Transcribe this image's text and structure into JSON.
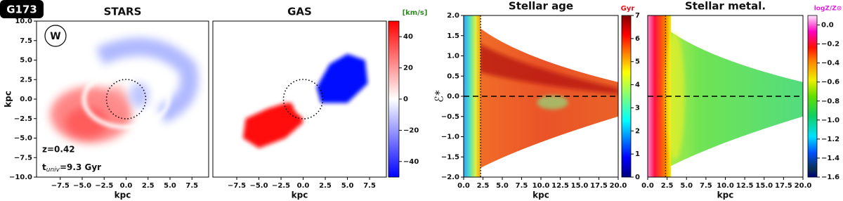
{
  "figure_label": "G173",
  "chart_data": [
    {
      "type": "velocity-map",
      "title": "STARS",
      "xlabel": "kpc",
      "ylabel": "kpc",
      "xlim": [
        -10.2,
        9.4
      ],
      "ylim": [
        -10,
        10
      ],
      "xticks": [
        {
          "value": -7.5,
          "label": "−7.5"
        },
        {
          "value": -5,
          "label": "−5.0"
        },
        {
          "value": -2.5,
          "label": "−2.5"
        },
        {
          "value": 0,
          "label": "0.0"
        },
        2.5,
        {
          "value": 5,
          "label": "5.0"
        },
        7.5
      ],
      "yticks": [
        {
          "value": 10,
          "label": "10.0"
        },
        7.5,
        {
          "value": 5,
          "label": "5.0"
        },
        2.5,
        {
          "value": 0,
          "label": "0.0"
        },
        {
          "value": -2.5,
          "label": "−2.5"
        },
        {
          "value": -5,
          "label": "−5.0"
        },
        {
          "value": -7.5,
          "label": "−7.5"
        },
        {
          "value": -10,
          "label": "−10.0"
        }
      ],
      "badge": "W",
      "redshift": "z=0.42",
      "age_parts": [
        "t",
        "univ",
        "=9.3 Gyr"
      ]
    },
    {
      "type": "velocity-map",
      "title": "GAS",
      "xlabel": "kpc",
      "xlim": [
        -10.2,
        9.4
      ],
      "ylim": [
        -10,
        10
      ],
      "xticks": [
        {
          "value": -7.5,
          "label": "−7.5"
        },
        {
          "value": -5,
          "label": "−5.0"
        },
        {
          "value": -2.5,
          "label": "−2.5"
        },
        {
          "value": 0,
          "label": "0.0"
        },
        2.5,
        {
          "value": 5,
          "label": "5.0"
        },
        7.5
      ],
      "colorbar": {
        "label": "[km/s]",
        "color": "#2e8b20",
        "lim": [
          -50,
          50
        ],
        "ticks": [
          40,
          20,
          0,
          {
            "value": -20,
            "label": "−20"
          },
          {
            "value": -40,
            "label": "−40"
          }
        ],
        "colormap": "bwr"
      }
    },
    {
      "type": "histogram2d",
      "title": "Stellar age",
      "xlabel": "kpc",
      "ylabel": "ℰ*",
      "xlim": [
        0,
        20
      ],
      "ylim": [
        -2,
        2
      ],
      "xticks": [
        {
          "value": 0,
          "label": "0.0"
        },
        2.5,
        {
          "value": 5,
          "label": "5.0"
        },
        7.5,
        {
          "value": 10,
          "label": "10.0"
        },
        12.5,
        {
          "value": 15,
          "label": "15.0"
        },
        17.5,
        {
          "value": 20,
          "label": "20.0"
        }
      ],
      "yticks": [
        {
          "value": 2,
          "label": "2.0"
        },
        1.5,
        {
          "value": 1,
          "label": "1.0"
        },
        0.5,
        {
          "value": 0,
          "label": "0.0"
        },
        {
          "value": -0.5,
          "label": "−0.5"
        },
        {
          "value": -1,
          "label": "−1.0"
        },
        {
          "value": -1.5,
          "label": "−1.5"
        },
        {
          "value": -2,
          "label": "−2.0"
        }
      ],
      "vline": 2.2,
      "hline": 0,
      "colorbar": {
        "label": "Gyr",
        "color": "#e8101a",
        "lim": [
          0,
          7
        ],
        "ticks": [
          0,
          1,
          2,
          3,
          4,
          5,
          6,
          7
        ],
        "colormap": "age"
      }
    },
    {
      "type": "histogram2d",
      "title": "Stellar metal.",
      "xlabel": "kpc",
      "xlim": [
        0,
        20
      ],
      "ylim": [
        -2,
        2
      ],
      "xticks": [
        {
          "value": 0,
          "label": "0.0"
        },
        2.5,
        {
          "value": 5,
          "label": "5.0"
        },
        7.5,
        {
          "value": 10,
          "label": "10.0"
        },
        12.5,
        {
          "value": 15,
          "label": "15.0"
        },
        17.5,
        {
          "value": 20,
          "label": "20.0"
        }
      ],
      "vline": 2.3,
      "hline": 0,
      "colorbar": {
        "label": "logZ/Z⊙",
        "color": "#e020e0",
        "lim": [
          -1.6,
          0.1
        ],
        "ticks": [
          {
            "value": 0,
            "label": "0.0"
          },
          {
            "value": -0.2,
            "label": "−0.2"
          },
          {
            "value": -0.4,
            "label": "−0.4"
          },
          {
            "value": -0.6,
            "label": "−0.6"
          },
          {
            "value": -0.8,
            "label": "−0.8"
          },
          {
            "value": -1,
            "label": "−1.0"
          },
          {
            "value": -1.2,
            "label": "−1.2"
          },
          {
            "value": -1.4,
            "label": "−1.4"
          },
          {
            "value": -1.6,
            "label": "−1.6"
          }
        ],
        "colormap": "metal"
      }
    }
  ]
}
